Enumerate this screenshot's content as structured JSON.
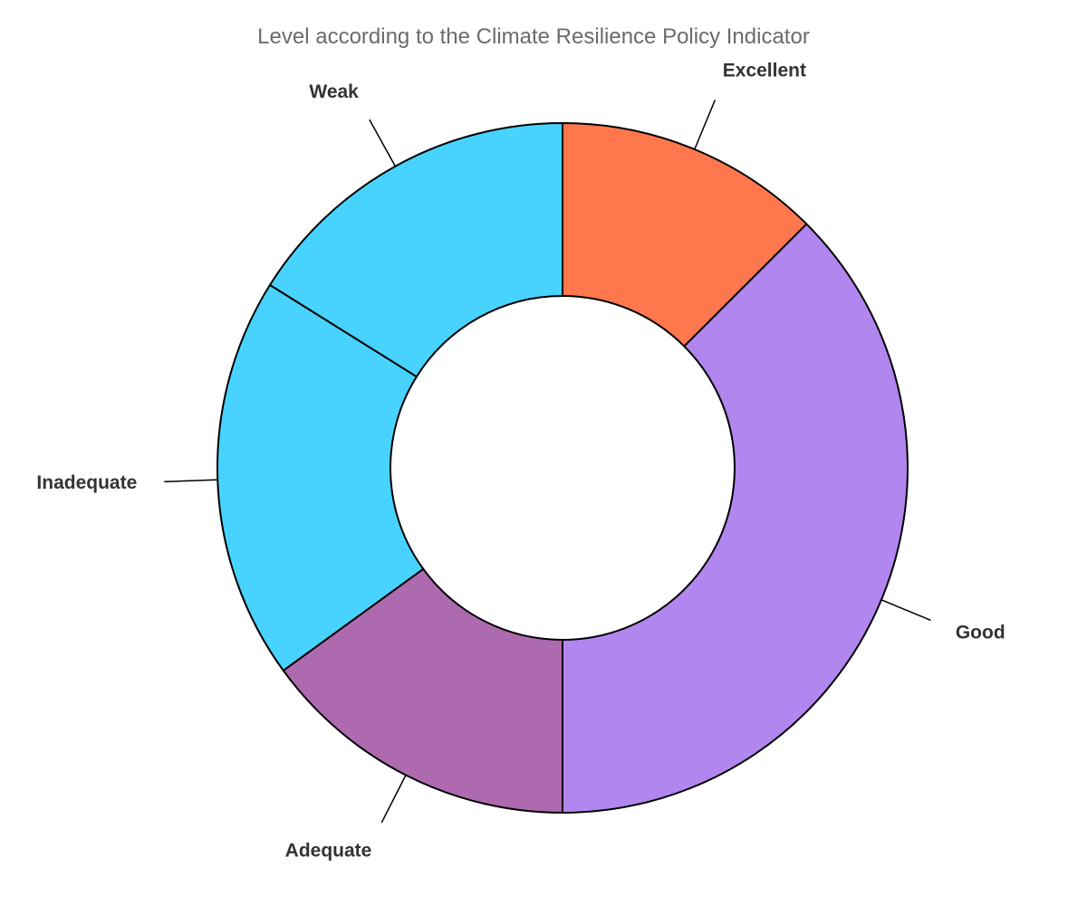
{
  "chart_data": {
    "type": "pie",
    "title": "Level according to the Climate Resilience Policy Indicator",
    "hole": true,
    "slices": [
      {
        "label": "Excellent",
        "value": 12.5,
        "color": "#FF774D"
      },
      {
        "label": "Good",
        "value": 37.5,
        "color": "#B186EE"
      },
      {
        "label": "Adequate",
        "value": 15.0,
        "color": "#AE6AAF"
      },
      {
        "label": "Inadequate",
        "value": 18.9,
        "color": "#48D3FF"
      },
      {
        "label": "Weak",
        "value": 16.1,
        "color": "#48D3FF"
      }
    ]
  }
}
